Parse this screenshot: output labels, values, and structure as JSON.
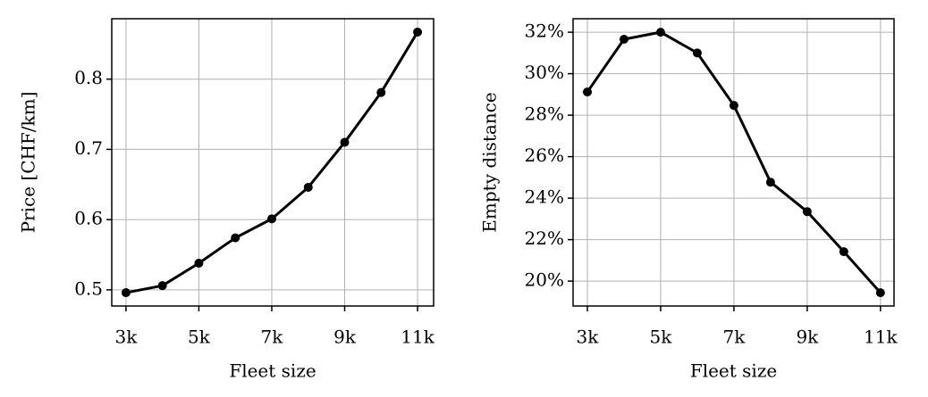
{
  "chart_data": [
    {
      "type": "line",
      "xlabel": "Fleet size",
      "ylabel": "Price [CHF/km]",
      "x": [
        3000,
        4000,
        5000,
        6000,
        7000,
        8000,
        9000,
        10000,
        11000
      ],
      "series": [
        {
          "color": "#000000",
          "values": [
            0.496,
            0.506,
            0.538,
            0.574,
            0.601,
            0.646,
            0.71,
            0.781,
            0.867
          ]
        }
      ],
      "xlim": [
        2610,
        11440
      ],
      "ylim": [
        0.477,
        0.886
      ],
      "xticks": [
        {
          "value": 3000,
          "label": "3k"
        },
        {
          "value": 5000,
          "label": "5k"
        },
        {
          "value": 7000,
          "label": "7k"
        },
        {
          "value": 9000,
          "label": "9k"
        },
        {
          "value": 11000,
          "label": "11k"
        }
      ],
      "yticks": [
        0.5,
        0.6,
        0.7,
        0.8
      ],
      "grid": true
    },
    {
      "type": "line",
      "xlabel": "Fleet size",
      "ylabel": "Empty distance",
      "x": [
        3000,
        4000,
        5000,
        6000,
        7000,
        8000,
        9000,
        10000,
        11000
      ],
      "series": [
        {
          "color": "#000000",
          "values": [
            29.12,
            31.66,
            32.0,
            31.0,
            28.47,
            24.77,
            23.35,
            21.42,
            19.44
          ]
        }
      ],
      "xlim": [
        2610,
        11370
      ],
      "ylim": [
        18.8,
        32.65
      ],
      "xticks": [
        {
          "value": 3000,
          "label": "3k"
        },
        {
          "value": 5000,
          "label": "5k"
        },
        {
          "value": 7000,
          "label": "7k"
        },
        {
          "value": 9000,
          "label": "9k"
        },
        {
          "value": 11000,
          "label": "11k"
        }
      ],
      "yticks": [
        {
          "value": 20,
          "label": "20%"
        },
        {
          "value": 22,
          "label": "22%"
        },
        {
          "value": 24,
          "label": "24%"
        },
        {
          "value": 26,
          "label": "26%"
        },
        {
          "value": 28,
          "label": "28%"
        },
        {
          "value": 30,
          "label": "30%"
        },
        {
          "value": 32,
          "label": "32%"
        }
      ],
      "grid": true
    }
  ]
}
